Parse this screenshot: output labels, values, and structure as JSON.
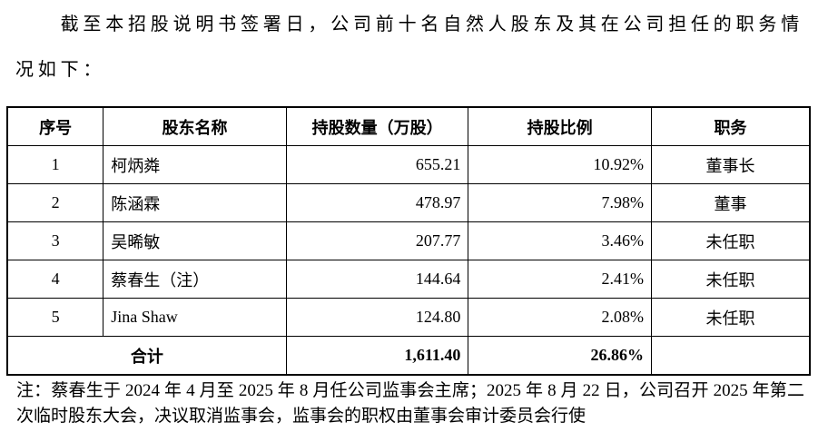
{
  "intro": "截至本招股说明书签署日，公司前十名自然人股东及其在公司担任的职务情况如下：",
  "table": {
    "header": [
      "序号",
      "股东名称",
      "持股数量（万股）",
      "持股比例",
      "职务"
    ],
    "rows": [
      [
        "1",
        "柯炳粦",
        "655.21",
        "10.92%",
        "董事长"
      ],
      [
        "2",
        "陈涵霖",
        "478.97",
        "7.98%",
        "董事"
      ],
      [
        "3",
        "吴晞敏",
        "207.77",
        "3.46%",
        "未任职"
      ],
      [
        "4",
        "蔡春生（注）",
        "144.64",
        "2.41%",
        "未任职"
      ],
      [
        "5",
        "Jina Shaw",
        "124.80",
        "2.08%",
        "未任职"
      ]
    ],
    "total": [
      "合计",
      "1,611.40",
      "26.86%"
    ]
  },
  "note": "注：蔡春生于 2024 年 4 月至 2025 年 8 月任公司监事会主席；2025 年 8 月 22 日，公司召开 2025 年第二次临时股东大会，决议取消监事会，监事会的职权由董事会审计委员会行使"
}
